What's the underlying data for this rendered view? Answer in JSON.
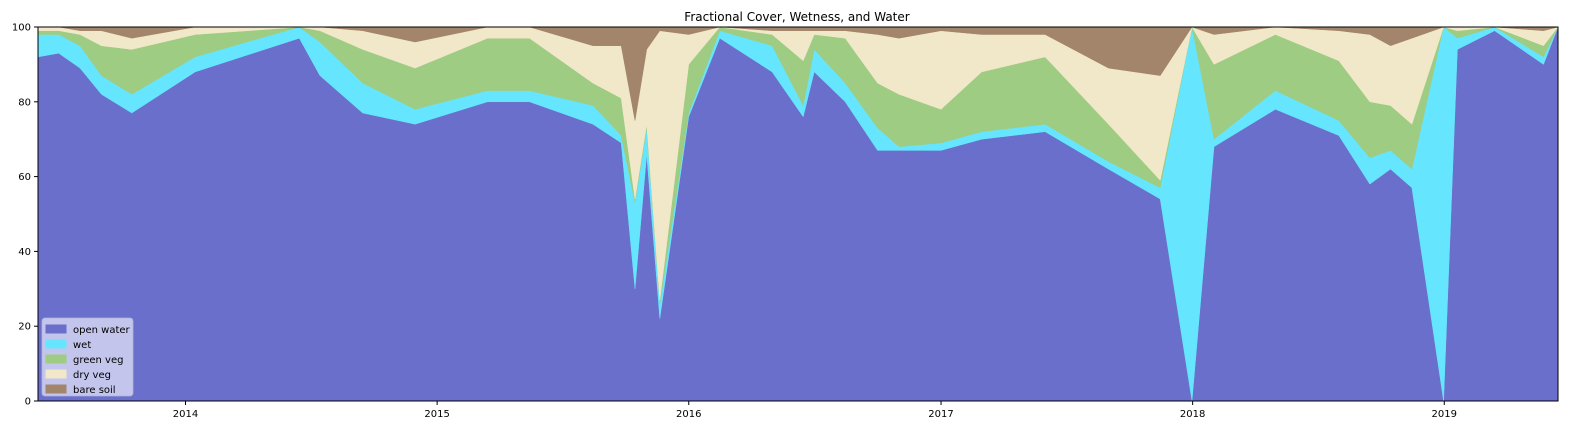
{
  "chart_data": {
    "type": "area",
    "stacked": true,
    "title": "Fractional Cover, Wetness, and Water",
    "xlabel": "",
    "ylabel": "",
    "xlim": [
      "2013-06-01",
      "2019-06-15"
    ],
    "ylim": [
      0,
      100
    ],
    "x_ticks": [
      "2014",
      "2015",
      "2016",
      "2017",
      "2018",
      "2019"
    ],
    "x_tick_dates": [
      "2014-01-01",
      "2015-01-01",
      "2016-01-01",
      "2017-01-01",
      "2018-01-01",
      "2019-01-01"
    ],
    "y_ticks": [
      0,
      20,
      40,
      60,
      80,
      100
    ],
    "legend_position": "lower-left",
    "grid": false,
    "x": [
      "2013-06-01",
      "2013-07-01",
      "2013-08-01",
      "2013-09-01",
      "2013-10-15",
      "2014-01-15",
      "2014-06-15",
      "2014-07-15",
      "2014-09-15",
      "2014-11-30",
      "2015-03-15",
      "2015-05-15",
      "2015-08-15",
      "2015-09-25",
      "2015-10-15",
      "2015-11-01",
      "2015-11-20",
      "2016-01-01",
      "2016-02-15",
      "2016-05-01",
      "2016-06-15",
      "2016-07-01",
      "2016-08-15",
      "2016-10-01",
      "2016-11-01",
      "2017-01-01",
      "2017-03-01",
      "2017-06-01",
      "2017-09-01",
      "2017-11-15",
      "2017-12-31",
      "2018-02-01",
      "2018-05-01",
      "2018-08-01",
      "2018-09-15",
      "2018-10-15",
      "2018-11-15",
      "2018-12-31",
      "2019-01-20",
      "2019-03-15",
      "2019-05-25",
      "2019-06-15"
    ],
    "series": [
      {
        "name": "open water",
        "color": "#6a6fcb",
        "values": [
          92,
          93,
          89,
          82,
          77,
          88,
          97,
          87,
          77,
          74,
          80,
          80,
          74,
          69,
          30,
          66,
          22,
          76,
          97,
          88,
          76,
          88,
          80,
          67,
          67,
          67,
          70,
          72,
          62,
          54,
          0,
          68,
          78,
          71,
          58,
          62,
          57,
          0,
          94,
          99,
          90,
          100
        ]
      },
      {
        "name": "wet",
        "color": "#66e5ff",
        "values": [
          6,
          5,
          6,
          5,
          5,
          4,
          3,
          9,
          8,
          4,
          3,
          3,
          5,
          2,
          23,
          7,
          4,
          1,
          2,
          7,
          3,
          6,
          5,
          6,
          1,
          2,
          2,
          2,
          2,
          3,
          100,
          2,
          5,
          4,
          7,
          5,
          5,
          100,
          3,
          1,
          2,
          0
        ]
      },
      {
        "name": "green veg",
        "color": "#9ecc82",
        "values": [
          1,
          1,
          3,
          8,
          12,
          6,
          0,
          3,
          9,
          11,
          14,
          14,
          6,
          10,
          1,
          1,
          1,
          13,
          1,
          3,
          12,
          4,
          12,
          12,
          14,
          9,
          16,
          18,
          10,
          2,
          0,
          20,
          15,
          16,
          15,
          12,
          12,
          0,
          2,
          0,
          3,
          0
        ]
      },
      {
        "name": "dry veg",
        "color": "#f1e7c9",
        "values": [
          1,
          1,
          1,
          4,
          3,
          2,
          0,
          1,
          5,
          7,
          3,
          3,
          10,
          14,
          21,
          20,
          72,
          8,
          0,
          1,
          8,
          1,
          2,
          13,
          15,
          21,
          10,
          6,
          15,
          28,
          0,
          8,
          2,
          8,
          18,
          16,
          23,
          0,
          1,
          0,
          4,
          0
        ]
      },
      {
        "name": "bare soil",
        "color": "#a2856a",
        "values": [
          0,
          0,
          1,
          1,
          3,
          0,
          0,
          0,
          1,
          4,
          0,
          0,
          5,
          5,
          25,
          6,
          1,
          2,
          0,
          1,
          1,
          1,
          1,
          2,
          3,
          1,
          2,
          2,
          11,
          13,
          0,
          2,
          0,
          1,
          2,
          5,
          3,
          0,
          0,
          0,
          1,
          0
        ]
      }
    ]
  }
}
